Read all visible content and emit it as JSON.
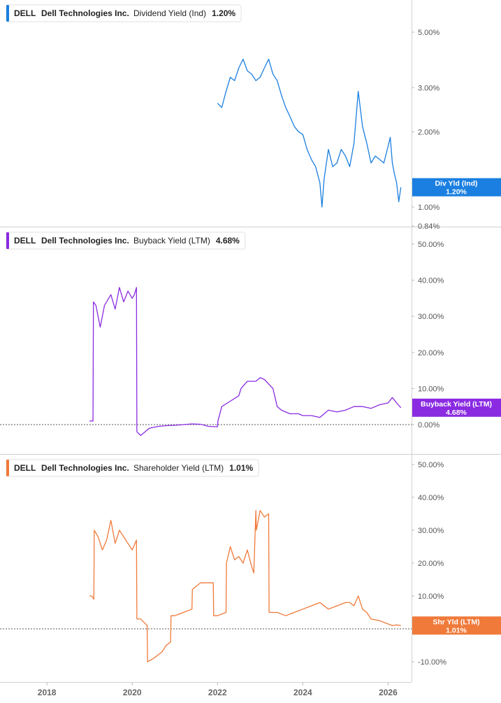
{
  "chart_data": [
    {
      "type": "line",
      "ticker": "DELL",
      "company": "Dell Technologies Inc.",
      "metric": "Dividend Yield (Ind)",
      "current_value": "1.20%",
      "color": "#1a7fe0",
      "scale": "log",
      "ylim": [
        0.84,
        7.0
      ],
      "yticks": [
        5.0,
        3.0,
        2.0,
        1.0,
        0.84
      ],
      "ytick_labels": [
        "5.00%",
        "3.00%",
        "2.00%",
        "1.00%",
        "0.84%"
      ],
      "badge_label": "Div Yld (Ind)",
      "badge_value": "1.20%",
      "badge_at": 1.2,
      "show_zero_line": false,
      "series": [
        {
          "x": [
            2022.0,
            2022.1,
            2022.2,
            2022.3,
            2022.4,
            2022.5,
            2022.6,
            2022.7,
            2022.8,
            2022.9,
            2023.0,
            2023.1,
            2023.2,
            2023.3,
            2023.4,
            2023.5,
            2023.6,
            2023.7,
            2023.8,
            2023.9,
            2024.0,
            2024.1,
            2024.2,
            2024.3,
            2024.4,
            2024.45,
            2024.5,
            2024.6,
            2024.7,
            2024.8,
            2024.9,
            2025.0,
            2025.1,
            2025.2,
            2025.3,
            2025.4,
            2025.5,
            2025.6,
            2025.7,
            2025.8,
            2025.9,
            2026.0,
            2026.05,
            2026.1,
            2026.15,
            2026.2,
            2026.25,
            2026.3
          ],
          "y": [
            2.6,
            2.5,
            2.9,
            3.3,
            3.2,
            3.6,
            3.9,
            3.5,
            3.4,
            3.2,
            3.3,
            3.6,
            3.9,
            3.4,
            3.2,
            2.8,
            2.5,
            2.3,
            2.1,
            2.0,
            1.95,
            1.7,
            1.55,
            1.45,
            1.25,
            1.0,
            1.3,
            1.7,
            1.45,
            1.5,
            1.7,
            1.6,
            1.45,
            1.8,
            2.9,
            2.1,
            1.8,
            1.5,
            1.6,
            1.55,
            1.5,
            1.75,
            1.9,
            1.5,
            1.35,
            1.25,
            1.05,
            1.2
          ]
        }
      ]
    },
    {
      "type": "line",
      "ticker": "DELL",
      "company": "Dell Technologies Inc.",
      "metric": "Buyback Yield (LTM)",
      "current_value": "4.68%",
      "color": "#8a2be2",
      "scale": "linear",
      "ylim": [
        -8,
        52
      ],
      "yticks": [
        50,
        40,
        30,
        20,
        10,
        0
      ],
      "ytick_labels": [
        "50.00%",
        "40.00%",
        "30.00%",
        "20.00%",
        "10.00%",
        "0.00%"
      ],
      "badge_label": "Buyback Yield (LTM)",
      "badge_value": "4.68%",
      "badge_at": 4.68,
      "show_zero_line": true,
      "series": [
        {
          "x": [
            2019.0,
            2019.08,
            2019.09,
            2019.15,
            2019.25,
            2019.35,
            2019.5,
            2019.6,
            2019.7,
            2019.8,
            2019.9,
            2020.0,
            2020.05,
            2020.1,
            2020.11,
            2020.2,
            2020.4,
            2020.6,
            2020.8,
            2021.0,
            2021.2,
            2021.4,
            2021.6,
            2021.8,
            2022.0,
            2022.01,
            2022.1,
            2022.3,
            2022.5,
            2022.55,
            2022.7,
            2022.9,
            2023.0,
            2023.1,
            2023.3,
            2023.4,
            2023.5,
            2023.7,
            2023.9,
            2024.0,
            2024.2,
            2024.4,
            2024.6,
            2024.8,
            2025.0,
            2025.2,
            2025.4,
            2025.6,
            2025.8,
            2026.0,
            2026.1,
            2026.2,
            2026.3
          ],
          "y": [
            1.0,
            1.0,
            34,
            33,
            27,
            33,
            36,
            32,
            38,
            34,
            37,
            35,
            36,
            38,
            -2,
            -3,
            -1,
            -0.5,
            -0.3,
            -0.2,
            0,
            0.2,
            0.1,
            -0.5,
            -0.6,
            1,
            5,
            6.5,
            8,
            10,
            12,
            12,
            13,
            12.5,
            10,
            5,
            4,
            3,
            3,
            2.5,
            2.5,
            2,
            4,
            3.5,
            4,
            5,
            5,
            4.5,
            5.5,
            6,
            7.5,
            6,
            4.68
          ]
        }
      ]
    },
    {
      "type": "line",
      "ticker": "DELL",
      "company": "Dell Technologies Inc.",
      "metric": "Shareholder Yield (LTM)",
      "current_value": "1.01%",
      "color": "#f07a3a",
      "scale": "linear",
      "ylim": [
        -14,
        54
      ],
      "yticks": [
        50,
        40,
        30,
        20,
        10,
        0,
        -10
      ],
      "ytick_labels": [
        "50.00%",
        "40.00%",
        "30.00%",
        "20.00%",
        "10.00%",
        "0.00%",
        "-10.00%"
      ],
      "badge_label": "Shr Yld (LTM)",
      "badge_value": "1.01%",
      "badge_at": 1.01,
      "show_zero_line": true,
      "series": [
        {
          "x": [
            2019.0,
            2019.05,
            2019.1,
            2019.11,
            2019.2,
            2019.3,
            2019.4,
            2019.5,
            2019.6,
            2019.7,
            2019.8,
            2019.9,
            2020.0,
            2020.1,
            2020.11,
            2020.2,
            2020.35,
            2020.36,
            2020.5,
            2020.7,
            2020.8,
            2020.9,
            2020.91,
            2021.0,
            2021.2,
            2021.4,
            2021.41,
            2021.6,
            2021.8,
            2021.9,
            2021.91,
            2022.0,
            2022.2,
            2022.21,
            2022.3,
            2022.4,
            2022.5,
            2022.6,
            2022.7,
            2022.8,
            2022.85,
            2022.9,
            2022.91,
            2023.0,
            2023.1,
            2023.2,
            2023.21,
            2023.4,
            2023.6,
            2023.8,
            2024.0,
            2024.2,
            2024.4,
            2024.6,
            2024.8,
            2025.0,
            2025.1,
            2025.2,
            2025.3,
            2025.4,
            2025.5,
            2025.6,
            2025.8,
            2026.0,
            2026.1,
            2026.2,
            2026.3
          ],
          "y": [
            10,
            10,
            9,
            30,
            28,
            24,
            27,
            33,
            26,
            30,
            28,
            26,
            24,
            27,
            3,
            3,
            1,
            -10,
            -9,
            -7,
            -5,
            -4,
            4,
            4,
            5,
            6,
            12,
            14,
            14,
            14,
            4,
            4,
            5,
            20,
            25,
            21,
            22,
            20,
            24,
            19,
            17,
            36,
            30,
            36,
            34,
            35,
            5,
            5,
            4,
            5,
            6,
            7,
            8,
            6,
            7,
            8,
            8,
            7,
            10,
            6,
            5,
            3,
            2.5,
            1.5,
            1.0,
            1.2,
            1.01
          ]
        }
      ]
    }
  ],
  "x_axis": {
    "range": [
      2016.9,
      2026.55
    ],
    "ticks": [
      2018,
      2020,
      2022,
      2024,
      2026
    ],
    "tick_labels": [
      "2018",
      "2020",
      "2022",
      "2024",
      "2026"
    ]
  }
}
